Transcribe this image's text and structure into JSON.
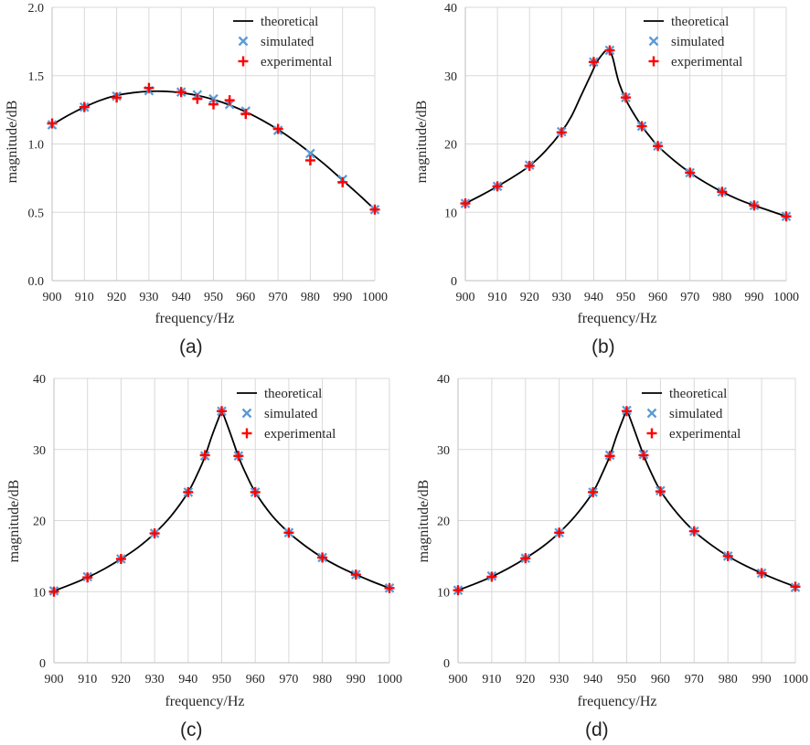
{
  "colors": {
    "theoretical": "#000000",
    "simulated": "#5b9bd5",
    "experimental": "#ff0000",
    "grid": "#d9d9d9",
    "axis": "#bfbfbf"
  },
  "chart_data": [
    {
      "id": "a",
      "caption": "(a)",
      "type": "line",
      "xlabel": "frequency/Hz",
      "ylabel": "magnitude/dB",
      "xlim": [
        900,
        1000
      ],
      "ylim": [
        0,
        2
      ],
      "xticks": [
        900,
        910,
        920,
        930,
        940,
        950,
        960,
        970,
        980,
        990,
        1000
      ],
      "yticks": [
        0,
        0.5,
        1,
        1.5,
        2
      ],
      "ytick_labels": [
        "0.0",
        "0.5",
        "1.0",
        "1.5",
        "2.0"
      ],
      "xtick_labels": [
        "900",
        "910",
        "920",
        "930",
        "940",
        "950",
        "960",
        "970",
        "980",
        "990",
        "1000"
      ],
      "grid": true,
      "legend": "top-right",
      "series": [
        {
          "name": "theoretical",
          "kind": "line",
          "x": [
            900,
            905,
            910,
            915,
            920,
            925,
            930,
            935,
            940,
            945,
            950,
            955,
            960,
            965,
            970,
            975,
            980,
            985,
            990,
            995,
            1000
          ],
          "y": [
            1.14,
            1.21,
            1.27,
            1.32,
            1.355,
            1.375,
            1.385,
            1.385,
            1.375,
            1.355,
            1.325,
            1.285,
            1.235,
            1.175,
            1.105,
            1.025,
            0.935,
            0.84,
            0.735,
            0.63,
            0.52
          ]
        },
        {
          "name": "simulated",
          "kind": "x-marker",
          "x": [
            900,
            910,
            920,
            930,
            940,
            945,
            950,
            955,
            960,
            970,
            980,
            990,
            1000
          ],
          "y": [
            1.14,
            1.27,
            1.35,
            1.39,
            1.38,
            1.36,
            1.33,
            1.29,
            1.24,
            1.1,
            0.93,
            0.74,
            0.52
          ]
        },
        {
          "name": "experimental",
          "kind": "plus-marker",
          "x": [
            900,
            910,
            920,
            930,
            940,
            945,
            950,
            955,
            960,
            970,
            980,
            990,
            1000
          ],
          "y": [
            1.15,
            1.27,
            1.34,
            1.41,
            1.38,
            1.33,
            1.29,
            1.32,
            1.22,
            1.11,
            0.88,
            0.72,
            0.52
          ]
        }
      ]
    },
    {
      "id": "b",
      "caption": "(b)",
      "type": "line",
      "xlabel": "frequency/Hz",
      "ylabel": "magnitude/dB",
      "xlim": [
        900,
        1000
      ],
      "ylim": [
        0,
        40
      ],
      "xticks": [
        900,
        910,
        920,
        930,
        940,
        950,
        960,
        970,
        980,
        990,
        1000
      ],
      "yticks": [
        0,
        10,
        20,
        30,
        40
      ],
      "ytick_labels": [
        "0",
        "10",
        "20",
        "30",
        "40"
      ],
      "xtick_labels": [
        "900",
        "910",
        "920",
        "930",
        "940",
        "950",
        "960",
        "970",
        "980",
        "990",
        "1000"
      ],
      "grid": true,
      "legend": "top-right",
      "series": [
        {
          "name": "theoretical",
          "kind": "line",
          "x": [
            900,
            905,
            910,
            915,
            920,
            925,
            930,
            933,
            936,
            939,
            941,
            943,
            944,
            945,
            946,
            947,
            948,
            950,
            952,
            955,
            958,
            960,
            965,
            970,
            975,
            980,
            985,
            990,
            995,
            1000
          ],
          "y": [
            11.3,
            12.5,
            13.8,
            15.2,
            16.8,
            19.0,
            21.8,
            24.0,
            27.0,
            30.0,
            32.0,
            33.3,
            33.7,
            33.6,
            32.5,
            30.5,
            28.8,
            26.5,
            24.8,
            22.6,
            20.8,
            19.7,
            17.6,
            15.8,
            14.3,
            13.0,
            11.9,
            11.0,
            10.2,
            9.4
          ]
        },
        {
          "name": "simulated",
          "kind": "x-marker",
          "x": [
            900,
            910,
            920,
            930,
            940,
            945,
            950,
            955,
            960,
            970,
            980,
            990,
            1000
          ],
          "y": [
            11.3,
            13.8,
            16.9,
            21.8,
            32.0,
            33.7,
            26.8,
            22.6,
            19.7,
            15.8,
            13.0,
            11.0,
            9.4
          ]
        },
        {
          "name": "experimental",
          "kind": "plus-marker",
          "x": [
            900,
            910,
            920,
            930,
            940,
            945,
            950,
            955,
            960,
            970,
            980,
            990,
            1000
          ],
          "y": [
            11.3,
            13.8,
            16.8,
            21.7,
            32.0,
            33.7,
            26.8,
            22.6,
            19.7,
            15.8,
            13.0,
            11.0,
            9.4
          ]
        }
      ]
    },
    {
      "id": "c",
      "caption": "(c)",
      "type": "line",
      "xlabel": "frequency/Hz",
      "ylabel": "magnitude/dB",
      "xlim": [
        900,
        1000
      ],
      "ylim": [
        0,
        40
      ],
      "xticks": [
        900,
        910,
        920,
        930,
        940,
        950,
        960,
        970,
        980,
        990,
        1000
      ],
      "yticks": [
        0,
        10,
        20,
        30,
        40
      ],
      "ytick_labels": [
        "0",
        "10",
        "20",
        "30",
        "40"
      ],
      "xtick_labels": [
        "900",
        "910",
        "920",
        "930",
        "940",
        "950",
        "960",
        "970",
        "980",
        "990",
        "1000"
      ],
      "grid": true,
      "legend": "top-right",
      "series": [
        {
          "name": "theoretical",
          "kind": "line",
          "x": [
            900,
            905,
            910,
            915,
            920,
            925,
            930,
            935,
            940,
            943,
            945,
            947,
            949,
            950,
            951,
            953,
            955,
            957,
            960,
            965,
            970,
            975,
            980,
            985,
            990,
            995,
            1000
          ],
          "y": [
            10.1,
            11.0,
            12.0,
            13.2,
            14.6,
            16.2,
            18.2,
            20.7,
            24.0,
            26.8,
            29.0,
            31.8,
            34.3,
            35.4,
            34.3,
            31.7,
            29.0,
            26.8,
            24.0,
            20.7,
            18.3,
            16.4,
            14.8,
            13.5,
            12.4,
            11.4,
            10.5
          ]
        },
        {
          "name": "simulated",
          "kind": "x-marker",
          "x": [
            900,
            910,
            920,
            930,
            940,
            945,
            950,
            955,
            960,
            970,
            980,
            990,
            1000
          ],
          "y": [
            10.1,
            12.1,
            14.6,
            18.2,
            24.0,
            29.1,
            35.4,
            29.1,
            24.0,
            18.3,
            14.8,
            12.4,
            10.5
          ]
        },
        {
          "name": "experimental",
          "kind": "plus-marker",
          "x": [
            900,
            910,
            920,
            930,
            940,
            945,
            950,
            955,
            960,
            970,
            980,
            990,
            1000
          ],
          "y": [
            10.0,
            12.0,
            14.6,
            18.2,
            24.0,
            29.2,
            35.4,
            29.1,
            24.0,
            18.3,
            14.8,
            12.4,
            10.5
          ]
        }
      ]
    },
    {
      "id": "d",
      "caption": "(d)",
      "type": "line",
      "xlabel": "frequency/Hz",
      "ylabel": "magnitude/dB",
      "xlim": [
        900,
        1000
      ],
      "ylim": [
        0,
        40
      ],
      "xticks": [
        900,
        910,
        920,
        930,
        940,
        950,
        960,
        970,
        980,
        990,
        1000
      ],
      "yticks": [
        0,
        10,
        20,
        30,
        40
      ],
      "ytick_labels": [
        "0",
        "10",
        "20",
        "30",
        "40"
      ],
      "xtick_labels": [
        "900",
        "910",
        "920",
        "930",
        "940",
        "950",
        "960",
        "970",
        "980",
        "990",
        "1000"
      ],
      "grid": true,
      "legend": "top-right",
      "series": [
        {
          "name": "theoretical",
          "kind": "line",
          "x": [
            900,
            905,
            910,
            915,
            920,
            925,
            930,
            935,
            940,
            943,
            945,
            947,
            949,
            950,
            951,
            953,
            955,
            957,
            960,
            965,
            970,
            975,
            980,
            985,
            990,
            995,
            1000
          ],
          "y": [
            10.2,
            11.1,
            12.1,
            13.3,
            14.7,
            16.3,
            18.3,
            20.8,
            24.0,
            26.9,
            29.1,
            31.9,
            34.4,
            35.5,
            34.4,
            31.8,
            29.2,
            27.0,
            24.2,
            21.0,
            18.5,
            16.6,
            15.0,
            13.7,
            12.6,
            11.6,
            10.7
          ]
        },
        {
          "name": "simulated",
          "kind": "x-marker",
          "x": [
            900,
            910,
            920,
            930,
            940,
            945,
            950,
            955,
            960,
            970,
            980,
            990,
            1000
          ],
          "y": [
            10.2,
            12.2,
            14.7,
            18.3,
            24.0,
            29.2,
            35.5,
            29.3,
            24.2,
            18.5,
            15.0,
            12.6,
            10.6
          ]
        },
        {
          "name": "experimental",
          "kind": "plus-marker",
          "x": [
            900,
            910,
            920,
            930,
            940,
            945,
            950,
            955,
            960,
            970,
            980,
            990,
            1000
          ],
          "y": [
            10.2,
            12.1,
            14.7,
            18.3,
            24.0,
            29.1,
            35.4,
            29.2,
            24.1,
            18.5,
            15.0,
            12.6,
            10.7
          ]
        }
      ]
    }
  ]
}
